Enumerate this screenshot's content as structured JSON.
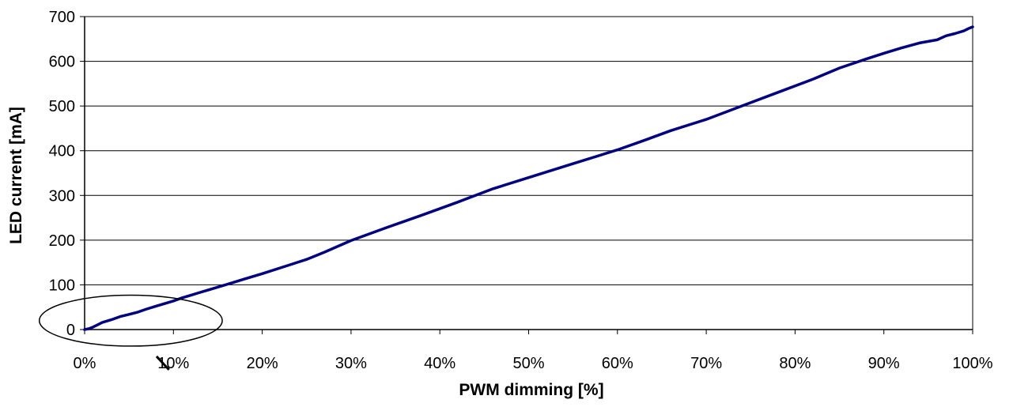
{
  "chart_data": {
    "type": "line",
    "title": "",
    "xlabel": "PWM dimming [%]",
    "ylabel": "LED current [mA]",
    "xlim": [
      0,
      100
    ],
    "ylim": [
      0,
      700
    ],
    "x_ticks": [
      0,
      10,
      20,
      30,
      40,
      50,
      60,
      70,
      80,
      90,
      100
    ],
    "x_tick_labels": [
      "0%",
      "10%",
      "20%",
      "30%",
      "40%",
      "50%",
      "60%",
      "70%",
      "80%",
      "90%",
      "100%"
    ],
    "y_ticks": [
      0,
      100,
      200,
      300,
      400,
      500,
      600,
      700
    ],
    "y_tick_labels": [
      "0",
      "100",
      "200",
      "300",
      "400",
      "500",
      "600",
      "700"
    ],
    "grid": "horizontal",
    "legend": "none",
    "series": [
      {
        "color": "#000080",
        "x": [
          0,
          0.5,
          1,
          1.5,
          2,
          3,
          4,
          5,
          6,
          7,
          8,
          9,
          10,
          11,
          12,
          13,
          14,
          15,
          16,
          18,
          20,
          23,
          25,
          27,
          30,
          34,
          38,
          42,
          46,
          50,
          55,
          60,
          63,
          66,
          70,
          74,
          78,
          82,
          85,
          88,
          90,
          92,
          94,
          96,
          97,
          98,
          99,
          99.5,
          100
        ],
        "y": [
          0,
          2,
          6,
          11,
          16,
          22,
          29,
          34,
          39,
          46,
          52,
          58,
          64,
          71,
          77,
          83,
          89,
          95,
          101,
          113,
          125,
          144,
          157,
          173,
          199,
          228,
          256,
          285,
          315,
          340,
          371,
          402,
          423,
          445,
          470,
          500,
          530,
          560,
          585,
          605,
          618,
          630,
          641,
          648,
          657,
          662,
          668,
          673,
          677
        ]
      }
    ],
    "annotations": [
      {
        "type": "ellipse",
        "center": [
          5.2,
          20
        ],
        "rx": 10.3,
        "ry": 57
      },
      {
        "type": "pointer-line",
        "from": [
          8.1,
          -60
        ],
        "to": [
          9.5,
          -90
        ]
      }
    ]
  }
}
